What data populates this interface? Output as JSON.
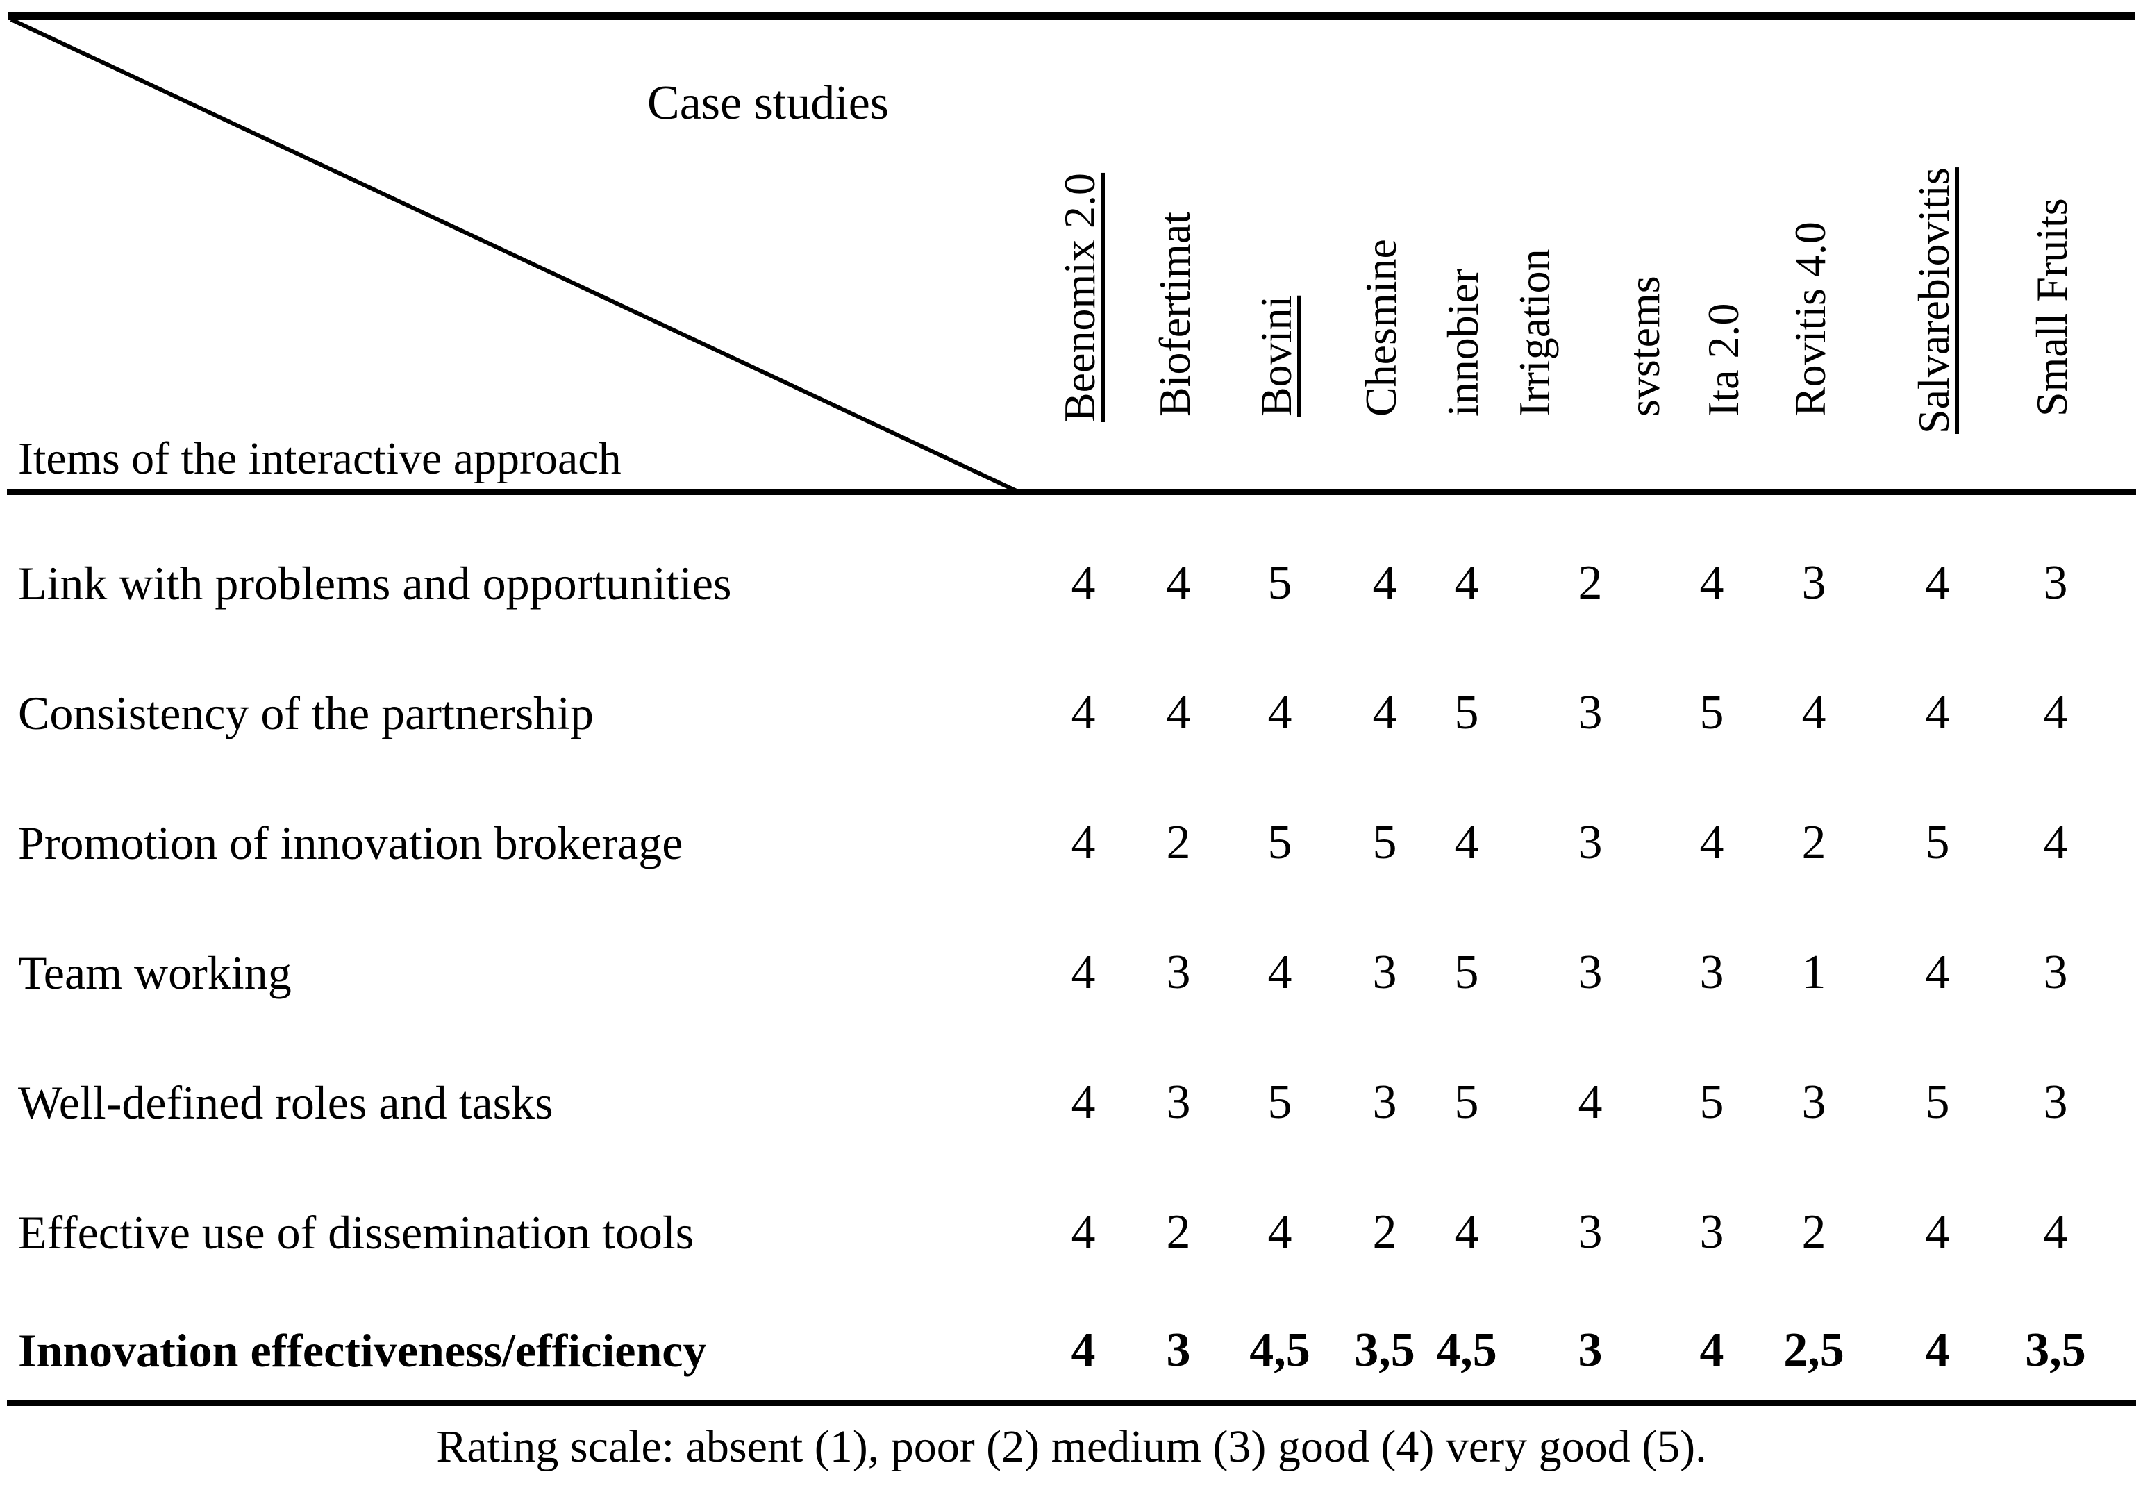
{
  "colors": {
    "ink": "#000000",
    "paper": "#ffffff"
  },
  "table": {
    "corner": {
      "top_label": "Case studies",
      "bottom_label": "Items of the interactive approach"
    },
    "columns": [
      {
        "label": "Beenomix 2.0",
        "underlined": true,
        "lines": [
          "Beenomix 2.0"
        ]
      },
      {
        "label": "Biofertimat",
        "underlined": false,
        "lines": [
          "Biofertimat"
        ]
      },
      {
        "label": "Bovini",
        "underlined": true,
        "lines": [
          "Bovini"
        ]
      },
      {
        "label": "Chesmine",
        "underlined": false,
        "lines": [
          "Chesmine"
        ]
      },
      {
        "label": "innobier",
        "underlined": false,
        "lines": [
          "innobier"
        ]
      },
      {
        "label": "Irrigation svstems",
        "underlined": false,
        "lines": [
          "Irrigation",
          "svstems"
        ]
      },
      {
        "label": "Ita 2.0",
        "underlined": false,
        "lines": [
          "Ita 2.0"
        ]
      },
      {
        "label": "Rovitis 4.0",
        "underlined": false,
        "lines": [
          "Rovitis 4.0"
        ]
      },
      {
        "label": "Salvarebiovitis",
        "underlined": true,
        "lines": [
          "Salvarebiovitis"
        ]
      },
      {
        "label": "Small Fruits",
        "underlined": false,
        "lines": [
          "Small Fruits"
        ]
      }
    ],
    "rows": [
      {
        "label": "Link with problems and opportunities",
        "bold": false,
        "values": [
          "4",
          "4",
          "5",
          "4",
          "4",
          "2",
          "4",
          "3",
          "4",
          "3"
        ]
      },
      {
        "label": "Consistency of the partnership",
        "bold": false,
        "values": [
          "4",
          "4",
          "4",
          "4",
          "5",
          "3",
          "5",
          "4",
          "4",
          "4"
        ]
      },
      {
        "label": "Promotion of innovation brokerage",
        "bold": false,
        "values": [
          "4",
          "2",
          "5",
          "5",
          "4",
          "3",
          "4",
          "2",
          "5",
          "4"
        ]
      },
      {
        "label": "Team working",
        "bold": false,
        "values": [
          "4",
          "3",
          "4",
          "3",
          "5",
          "3",
          "3",
          "1",
          "4",
          "3"
        ]
      },
      {
        "label": "Well-defined roles and tasks",
        "bold": false,
        "values": [
          "4",
          "3",
          "5",
          "3",
          "5",
          "4",
          "5",
          "3",
          "5",
          "3"
        ]
      },
      {
        "label": "Effective use of dissemination tools",
        "bold": false,
        "values": [
          "4",
          "2",
          "4",
          "2",
          "4",
          "3",
          "3",
          "2",
          "4",
          "4"
        ]
      },
      {
        "label": "Innovation effectiveness/efficiency",
        "bold": true,
        "values": [
          "4",
          "3",
          "4,5",
          "3,5",
          "4,5",
          "3",
          "4",
          "2,5",
          "4",
          "3,5"
        ]
      }
    ],
    "footnote": "Rating scale: absent (1), poor (2) medium (3) good (4) very good (5)."
  }
}
